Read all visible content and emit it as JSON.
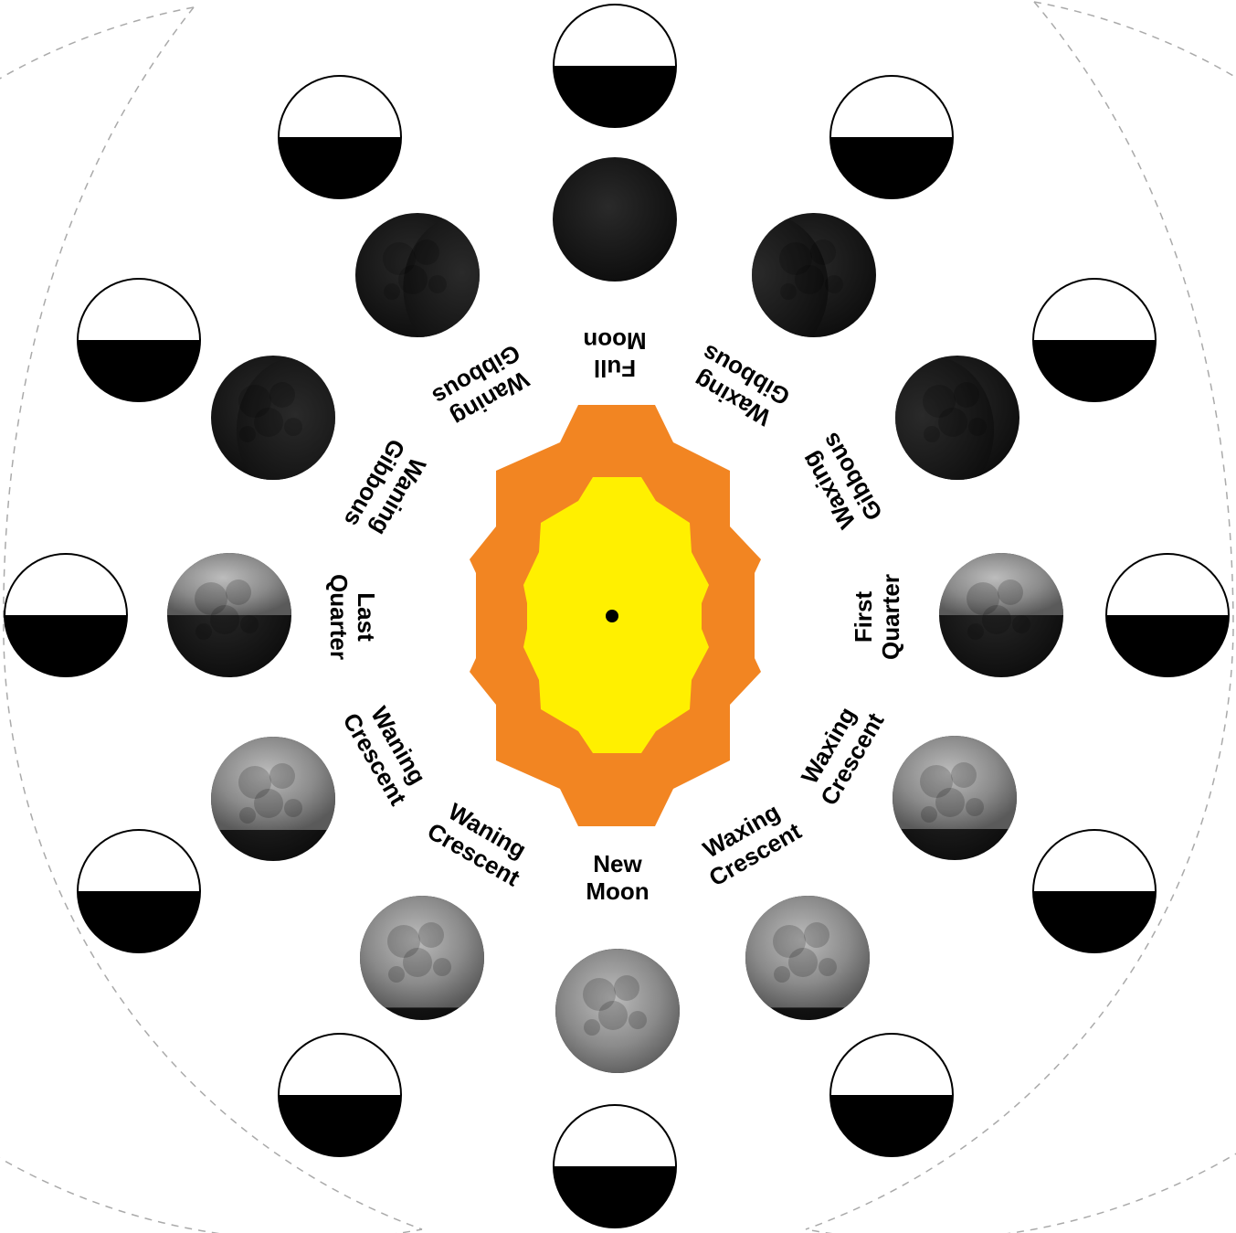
{
  "colors": {
    "sun_outer": "#F28522",
    "sun_inner": "#FFF000",
    "center_dot": "#000000",
    "moon_dark": "#151515",
    "moon_lit": "#9a9a9a",
    "disc_light": "#ffffff",
    "disc_dark": "#000000",
    "orbit_dash": "#aaaaaa"
  },
  "labels": {
    "full_moon": [
      "Full",
      "Moon"
    ],
    "waxing_gibbous_1": [
      "Waxing",
      "Gibbous"
    ],
    "waxing_gibbous_2": [
      "Waxing",
      "Gibbous"
    ],
    "first_quarter": [
      "First",
      "Quarter"
    ],
    "waxing_crescent_1": [
      "Waxing",
      "Crescent"
    ],
    "waxing_crescent_2": [
      "Waxing",
      "Crescent"
    ],
    "new_moon": [
      "New",
      "Moon"
    ],
    "waning_crescent_1": [
      "Waning",
      "Crescent"
    ],
    "waning_crescent_2": [
      "Waning",
      "Crescent"
    ],
    "last_quarter": [
      "Last",
      "Quarter"
    ],
    "waning_gibbous_1": [
      "Waning",
      "Gibbous"
    ],
    "waning_gibbous_2": [
      "Waning",
      "Gibbous"
    ]
  },
  "moons": [
    {
      "id": "full",
      "lit": 0.0,
      "side": "none"
    },
    {
      "id": "waxing-gibbous-2",
      "lit": 0.1,
      "side": "left"
    },
    {
      "id": "waxing-gibbous-1",
      "lit": 0.3,
      "side": "left"
    },
    {
      "id": "first-quarter",
      "lit": 0.5,
      "side": "top"
    },
    {
      "id": "waxing-crescent-1",
      "lit": 0.75,
      "side": "top"
    },
    {
      "id": "waxing-crescent-2",
      "lit": 0.9,
      "side": "top"
    },
    {
      "id": "new",
      "lit": 1.0,
      "side": "none"
    },
    {
      "id": "waning-crescent-2",
      "lit": 0.9,
      "side": "top"
    },
    {
      "id": "waning-crescent-1",
      "lit": 0.75,
      "side": "top"
    },
    {
      "id": "last-quarter",
      "lit": 0.5,
      "side": "top"
    },
    {
      "id": "waning-gibbous-1",
      "lit": 0.3,
      "side": "right"
    },
    {
      "id": "waning-gibbous-2",
      "lit": 0.1,
      "side": "right"
    }
  ]
}
